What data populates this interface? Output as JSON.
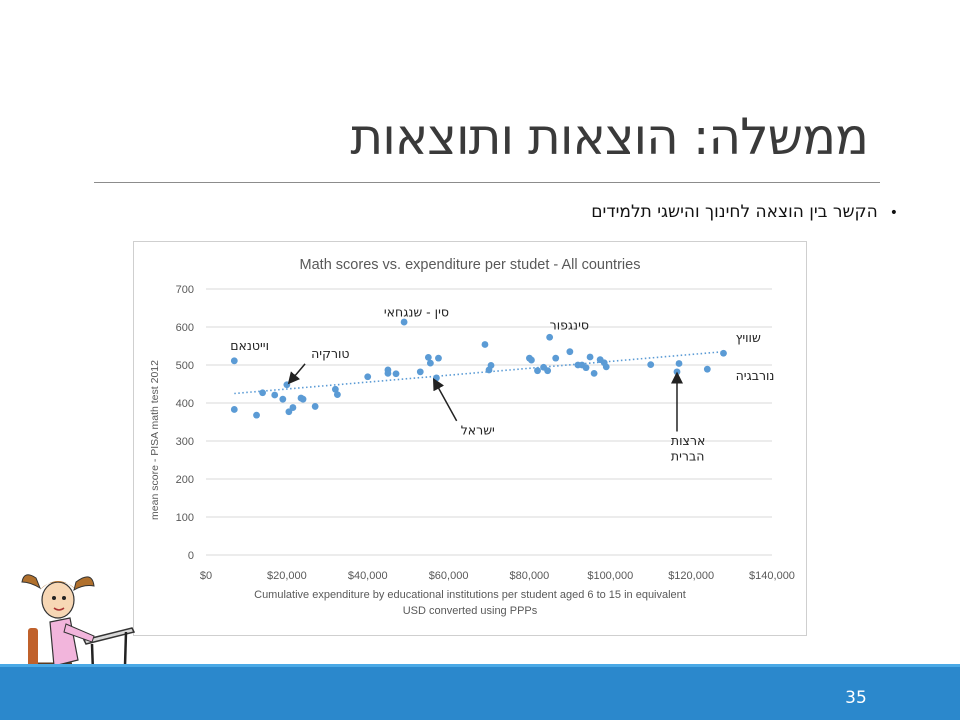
{
  "slide": {
    "title": "ממשלה: הוצאות ותוצאות",
    "bullet": "הקשר בין הוצאה לחינוך והישגי תלמידים",
    "bullet_symbol": "•",
    "page_number": "35",
    "accent_color": "#2b88cc"
  },
  "chart_data": {
    "type": "scatter",
    "title": "Math scores vs. expenditure per studet - All countries",
    "xlabel": "Cumulative expenditure by educational institutions per student aged 6 to 15 in equivalent USD converted using PPPs",
    "xlabel_lines": [
      "Cumulative expenditure by educational institutions per student aged 6 to 15 in equivalent",
      "USD converted using PPPs"
    ],
    "ylabel": "mean score - PISA math test 2012",
    "xlim": [
      0,
      140000
    ],
    "ylim": [
      0,
      700
    ],
    "x_ticks": [
      0,
      20000,
      40000,
      60000,
      80000,
      100000,
      120000,
      140000
    ],
    "x_tick_labels": [
      "$0",
      "$20,000",
      "$40,000",
      "$60,000",
      "$80,000",
      "$100,000",
      "$120,000",
      "$140,000"
    ],
    "y_ticks": [
      0,
      100,
      200,
      300,
      400,
      500,
      600,
      700
    ],
    "y_tick_labels": [
      "0",
      "100",
      "200",
      "300",
      "400",
      "500",
      "600",
      "700"
    ],
    "grid": "horizontal",
    "point_color": "#5b9bd5",
    "trendline": {
      "x": [
        7000,
        128000
      ],
      "y": [
        425,
        535
      ],
      "style": "dotted"
    },
    "points": [
      [
        7000,
        511
      ],
      [
        7000,
        383
      ],
      [
        12500,
        368
      ],
      [
        14000,
        427
      ],
      [
        17000,
        421
      ],
      [
        19000,
        410
      ],
      [
        20000,
        448
      ],
      [
        20500,
        377
      ],
      [
        21500,
        388
      ],
      [
        23500,
        413
      ],
      [
        24000,
        410
      ],
      [
        27000,
        391
      ],
      [
        32000,
        436
      ],
      [
        32500,
        422
      ],
      [
        40000,
        469
      ],
      [
        45000,
        487
      ],
      [
        45000,
        478
      ],
      [
        47000,
        477
      ],
      [
        49000,
        613
      ],
      [
        53000,
        482
      ],
      [
        55000,
        520
      ],
      [
        55500,
        505
      ],
      [
        57000,
        466
      ],
      [
        57500,
        518
      ],
      [
        69000,
        554
      ],
      [
        70000,
        487
      ],
      [
        70500,
        499
      ],
      [
        80000,
        518
      ],
      [
        80500,
        513
      ],
      [
        82000,
        485
      ],
      [
        83500,
        494
      ],
      [
        84500,
        485
      ],
      [
        85000,
        573
      ],
      [
        86500,
        518
      ],
      [
        90000,
        535
      ],
      [
        92000,
        500
      ],
      [
        93000,
        500
      ],
      [
        94000,
        493
      ],
      [
        95000,
        521
      ],
      [
        96000,
        478
      ],
      [
        97500,
        514
      ],
      [
        98500,
        506
      ],
      [
        99000,
        495
      ],
      [
        110000,
        501
      ],
      [
        116500,
        482
      ],
      [
        117000,
        504
      ],
      [
        124000,
        489
      ],
      [
        128000,
        531
      ]
    ],
    "annotations": [
      {
        "text": "וייטנאם",
        "x": 6000,
        "y": 540
      },
      {
        "text": "טורקיה",
        "x": 26000,
        "y": 519
      },
      {
        "text": "סין - שנגחאי",
        "x": 44000,
        "y": 628
      },
      {
        "text": "סינגפור",
        "x": 85000,
        "y": 593
      },
      {
        "text": "שוויץ",
        "x": 131000,
        "y": 560
      },
      {
        "text": "נורבגיה",
        "x": 131000,
        "y": 460
      },
      {
        "text": "ישראל",
        "x": 63000,
        "y": 317
      },
      {
        "text": "ארצות",
        "x": 115000,
        "y": 289
      },
      {
        "text": "הברית",
        "x": 115000,
        "y": 249
      }
    ],
    "arrows": [
      {
        "from": [
          24500,
          503
        ],
        "to": [
          20700,
          455
        ]
      },
      {
        "from": [
          62000,
          353
        ],
        "to": [
          56500,
          459
        ]
      },
      {
        "from": [
          116500,
          325
        ],
        "to": [
          116500,
          475
        ]
      }
    ]
  }
}
